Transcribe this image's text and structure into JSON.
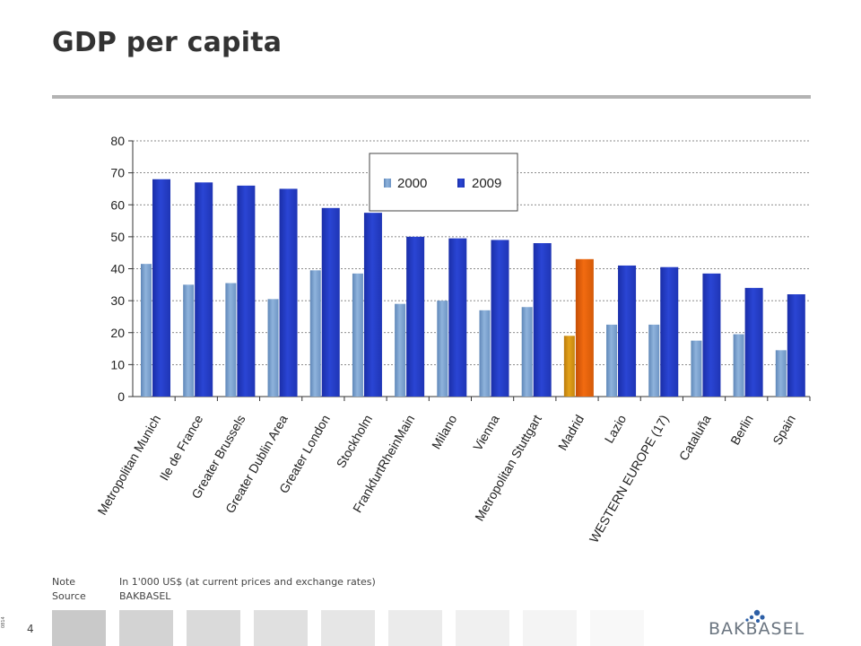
{
  "title": "GDP per capita",
  "notes": {
    "note_label": "Note",
    "note_text": "In 1'000 US$ (at current prices and exchange  rates)",
    "source_label": "Source",
    "source_text": "BAKBASEL"
  },
  "page_number": "4",
  "side_code": "0814",
  "logo_text": "BAKBASEL",
  "footer_box_colors": [
    "#c9c9c9",
    "#d3d3d3",
    "#dadada",
    "#e0e0e0",
    "#e6e6e6",
    "#ebebeb",
    "#f0f0f0",
    "#f4f4f4",
    "#f8f8f8"
  ],
  "colors": {
    "series_2000": "#8fb3dc",
    "series_2009": "#2a45d4",
    "highlight_2000": "#e3a21a",
    "highlight_2009": "#f26b10",
    "title_rule": "#b3b3b3",
    "logo_dots": "#2d5fa6"
  },
  "chart_data": {
    "type": "bar",
    "categories": [
      "Metropolitan Munich",
      "Ile de France",
      "Greater Brussels",
      "Greater Dublin Area",
      "Greater London",
      "Stockholm",
      "FrankfurtRheinMain",
      "Milano",
      "Vienna",
      "Metropolitan Stuttgart",
      "Madrid",
      "Lazio",
      "WESTERN EUROPE (17)",
      "Cataluña",
      "Berlin",
      "Spain"
    ],
    "series": [
      {
        "name": "2000",
        "values": [
          41.5,
          35,
          35.5,
          30.5,
          39.5,
          38.5,
          29,
          30,
          27,
          28,
          19,
          22.5,
          22.5,
          17.5,
          19.5,
          14.5
        ]
      },
      {
        "name": "2009",
        "values": [
          68,
          67,
          66,
          65,
          59,
          57.5,
          50,
          49.5,
          49,
          48,
          43,
          41,
          40.5,
          38.5,
          34,
          32
        ]
      }
    ],
    "highlight_category": "Madrid",
    "ylim": [
      0,
      80
    ],
    "yticks": [
      "0",
      "10",
      "20",
      "30",
      "40",
      "50",
      "60",
      "70",
      "80"
    ],
    "grid": "horizontal dotted",
    "legend_position": "top-center"
  }
}
